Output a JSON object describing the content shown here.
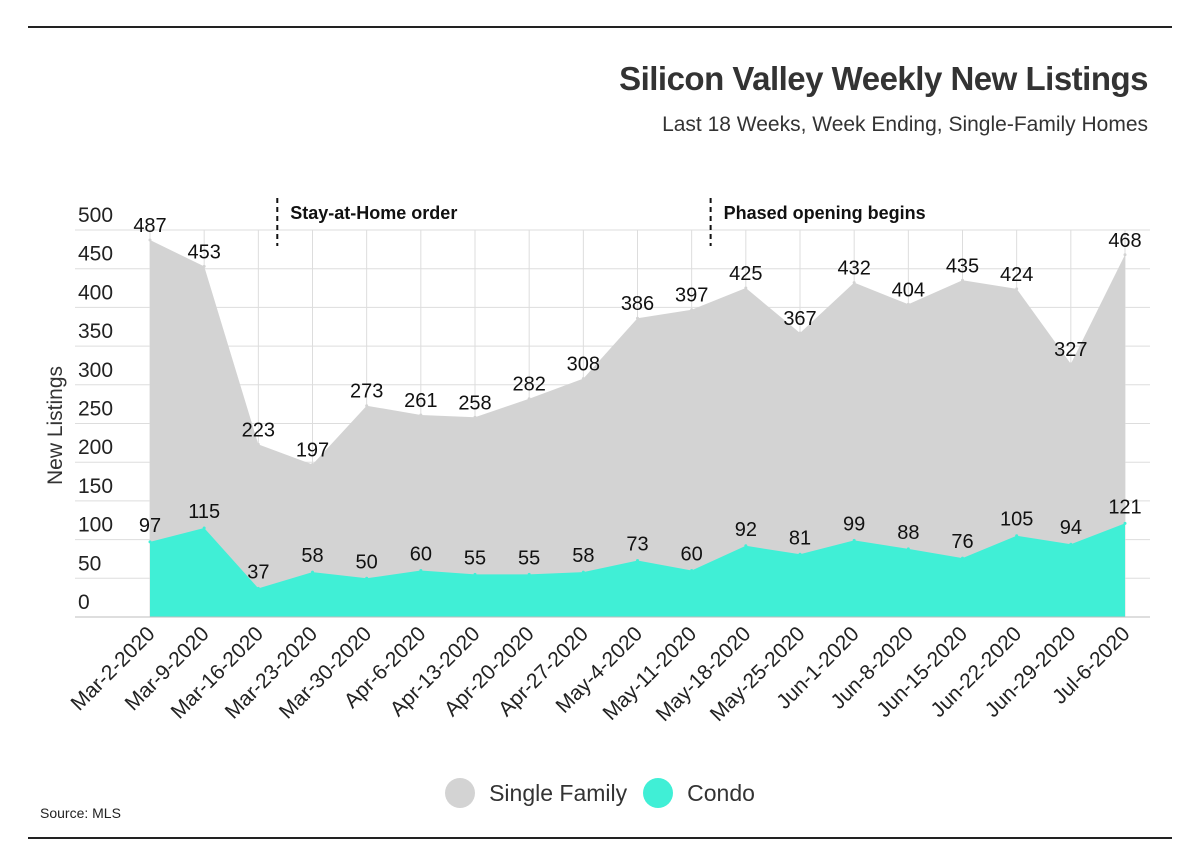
{
  "header": {
    "title": "Silicon Valley Weekly New Listings",
    "subtitle": "Last 18 Weeks, Week Ending, Single-Family Homes"
  },
  "footer": {
    "source": "Source: MLS"
  },
  "chart_data": {
    "type": "area",
    "ylabel": "New Listings",
    "ylim": [
      0,
      500
    ],
    "yticks": [
      0,
      50,
      100,
      150,
      200,
      250,
      300,
      350,
      400,
      450,
      500
    ],
    "grid": true,
    "legend_position": "bottom-center",
    "categories": [
      "Mar-2-2020",
      "Mar-9-2020",
      "Mar-16-2020",
      "Mar-23-2020",
      "Mar-30-2020",
      "Apr-6-2020",
      "Apr-13-2020",
      "Apr-20-2020",
      "Apr-27-2020",
      "May-4-2020",
      "May-11-2020",
      "May-18-2020",
      "May-25-2020",
      "Jun-1-2020",
      "Jun-8-2020",
      "Jun-15-2020",
      "Jun-22-2020",
      "Jun-29-2020",
      "Jul-6-2020"
    ],
    "series": [
      {
        "name": "Single Family",
        "color": "#d3d3d3",
        "values": [
          487,
          453,
          223,
          197,
          273,
          261,
          258,
          282,
          308,
          386,
          397,
          425,
          367,
          432,
          404,
          435,
          424,
          327,
          468
        ]
      },
      {
        "name": "Condo",
        "color": "#40efd6",
        "values": [
          97,
          115,
          37,
          58,
          50,
          60,
          55,
          55,
          58,
          73,
          60,
          92,
          81,
          99,
          88,
          76,
          105,
          94,
          121
        ]
      }
    ],
    "annotations": [
      {
        "text": "Stay-at-Home order",
        "after_category": "Mar-16-2020"
      },
      {
        "text": "Phased opening begins",
        "after_category": "May-11-2020"
      }
    ]
  }
}
